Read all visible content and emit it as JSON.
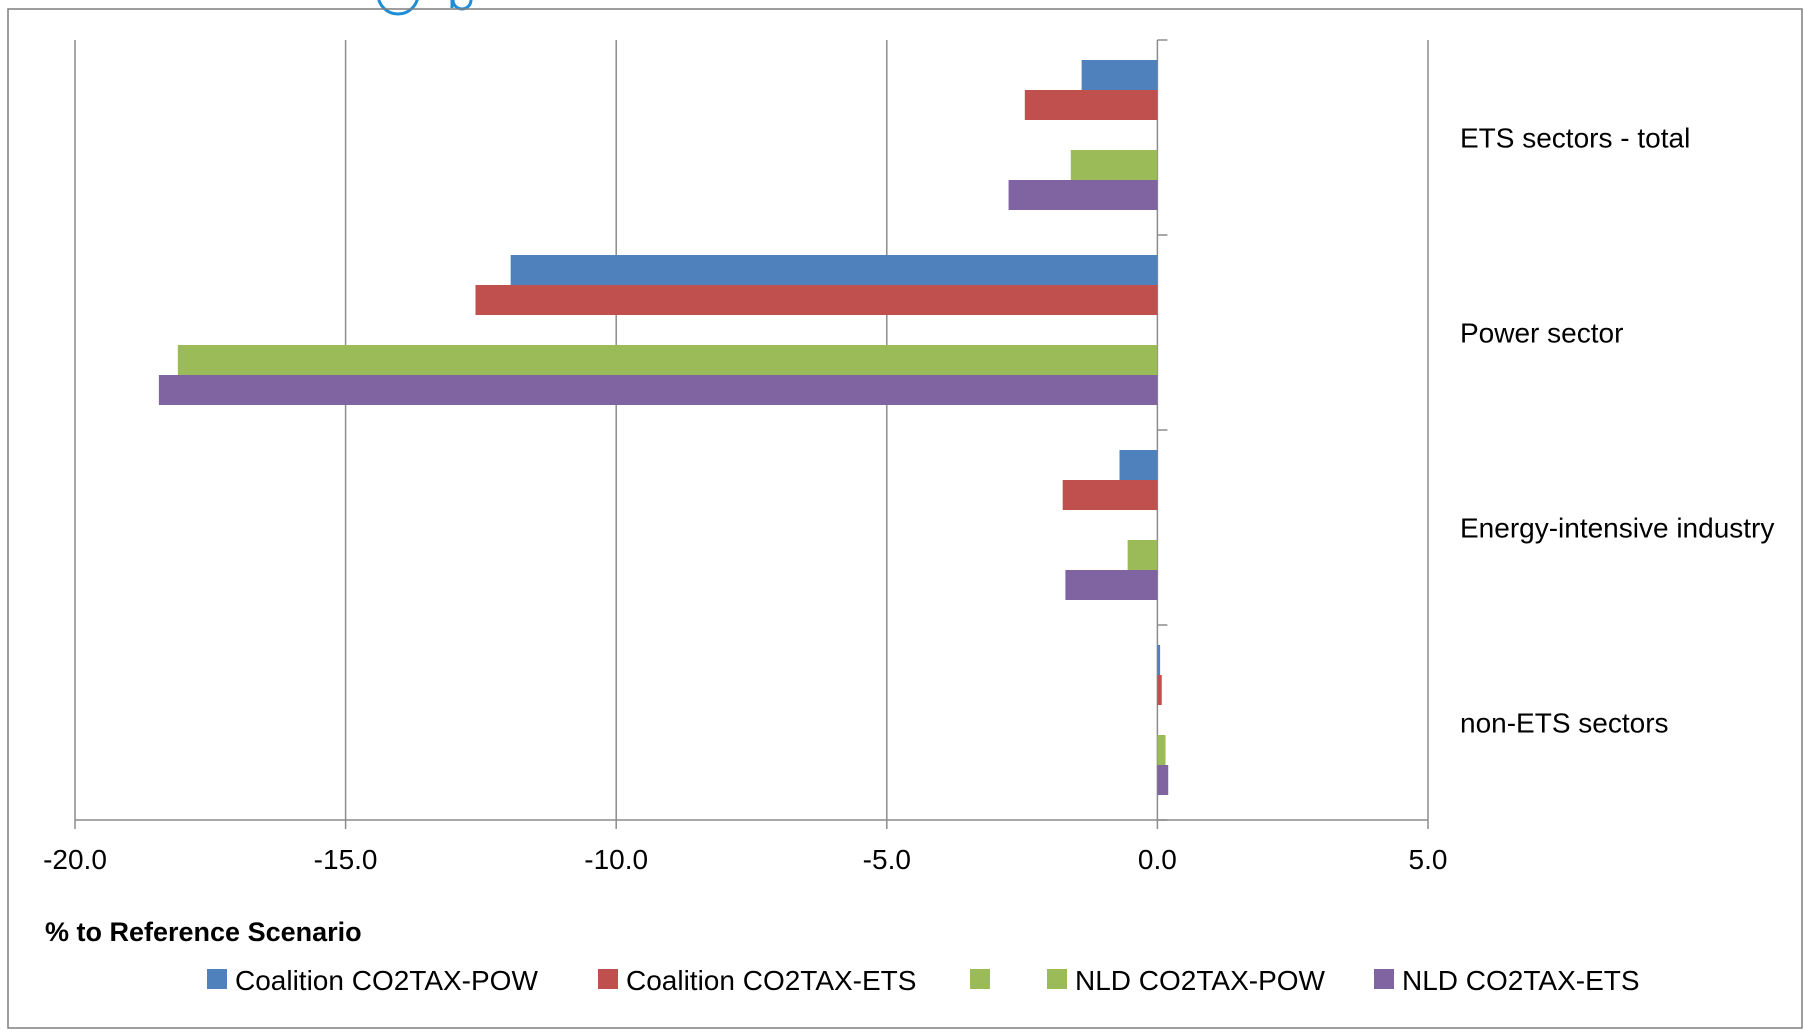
{
  "chart_data": {
    "type": "bar",
    "orientation": "horizontal",
    "title": "",
    "xlabel": "% to Reference Scenario",
    "ylabel": "",
    "xlim": [
      -20,
      5
    ],
    "xticks": [
      "-20.0",
      "-15.0",
      "-10.0",
      "-5.0",
      "0.0",
      "5.0"
    ],
    "grid": "vertical",
    "legend_position": "bottom",
    "categories": [
      "ETS sectors - total",
      "Power sector",
      "Energy-intensive industry",
      "non-ETS sectors"
    ],
    "series": [
      {
        "name": "Coalition CO2TAX-POW",
        "color": "#4f81bd",
        "values": [
          -1.4,
          -11.95,
          -0.7,
          0.05
        ]
      },
      {
        "name": "Coalition CO2TAX-ETS",
        "color": "#c0504d",
        "values": [
          -2.45,
          -12.6,
          -1.75,
          0.08
        ]
      },
      {
        "name": "",
        "color": "#9bbb59",
        "values": [
          null,
          null,
          null,
          null
        ]
      },
      {
        "name": "NLD CO2TAX-POW",
        "color": "#9bbb59",
        "values": [
          -1.6,
          -18.1,
          -0.55,
          0.15
        ]
      },
      {
        "name": "NLD CO2TAX-ETS",
        "color": "#8064a2",
        "values": [
          -2.75,
          -18.45,
          -1.7,
          0.2
        ]
      }
    ]
  }
}
